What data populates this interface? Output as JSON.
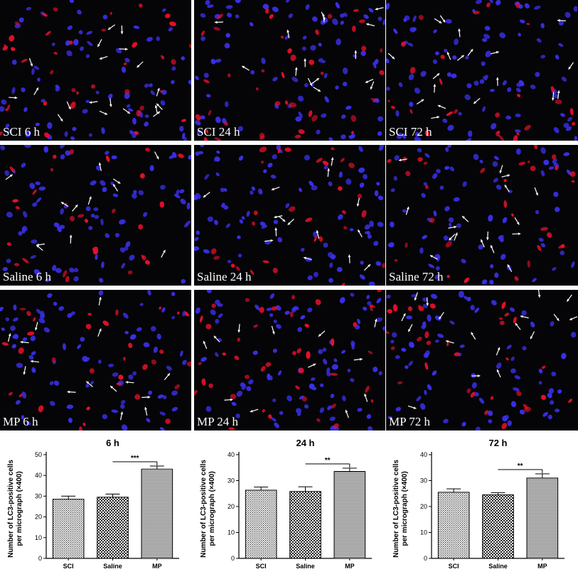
{
  "panels": [
    {
      "label": "SCI 6 h"
    },
    {
      "label": "SCI 24 h"
    },
    {
      "label": "SCI 72 h"
    },
    {
      "label": "Saline 6 h"
    },
    {
      "label": "Saline 24 h"
    },
    {
      "label": "Saline 72 h"
    },
    {
      "label": "MP 6 h"
    },
    {
      "label": "MP 24 h"
    },
    {
      "label": "MP 72 h"
    }
  ],
  "colors": {
    "nuclei": "#3a2fe8",
    "lc3": "#e8102a",
    "background": "#050508"
  },
  "chart_data": [
    {
      "type": "bar",
      "title": "6 h",
      "ylabel": "Number of LC3-positive cells per micrograph (×400)",
      "categories": [
        "SCI",
        "Saline",
        "MP"
      ],
      "values": [
        28.5,
        29.5,
        43
      ],
      "errors": [
        1.5,
        1.5,
        1.5
      ],
      "ylim": [
        0,
        50
      ],
      "yticks": [
        0,
        10,
        20,
        30,
        40,
        50
      ],
      "significance": {
        "from": 1,
        "to": 2,
        "label": "***"
      }
    },
    {
      "type": "bar",
      "title": "24 h",
      "ylabel": "Number of LC3-positive cells per micrograph (×400)",
      "categories": [
        "SCI",
        "Saline",
        "MP"
      ],
      "values": [
        26.3,
        25.8,
        33.5
      ],
      "errors": [
        1.2,
        1.8,
        1.3
      ],
      "ylim": [
        0,
        40
      ],
      "yticks": [
        0,
        10,
        20,
        30,
        40
      ],
      "significance": {
        "from": 1,
        "to": 2,
        "label": "**"
      }
    },
    {
      "type": "bar",
      "title": "72 h",
      "ylabel": "Number of LC3-positive cells per micrograph (×400)",
      "categories": [
        "SCI",
        "Saline",
        "MP"
      ],
      "values": [
        25.5,
        24.5,
        31
      ],
      "errors": [
        1.3,
        0.8,
        1.6
      ],
      "ylim": [
        0,
        40
      ],
      "yticks": [
        0,
        10,
        20,
        30,
        40
      ],
      "significance": {
        "from": 1,
        "to": 2,
        "label": "**"
      }
    }
  ]
}
